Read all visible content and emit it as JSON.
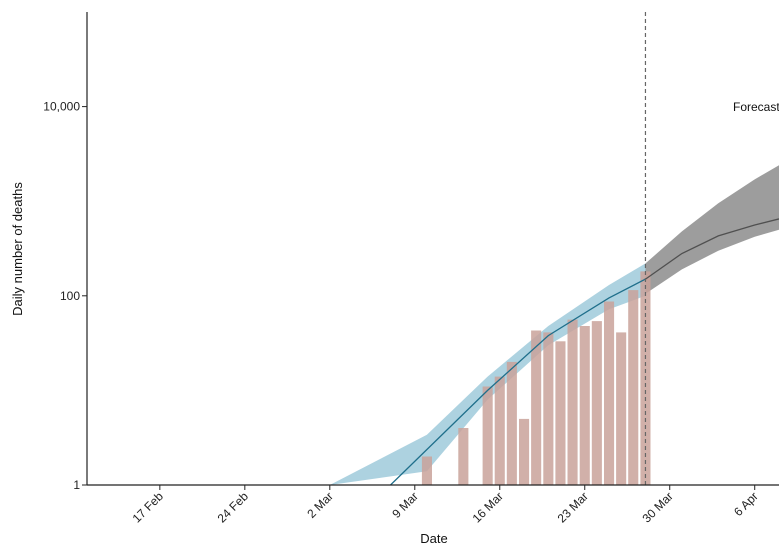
{
  "chart_data": {
    "type": "bar",
    "title": "",
    "xlabel": "Date",
    "ylabel": "Daily number of deaths",
    "y_scale": "log",
    "ylim": [
      1,
      100000
    ],
    "y_ticks": [
      {
        "value": 1,
        "label": "1"
      },
      {
        "value": 100,
        "label": "100"
      },
      {
        "value": 10000,
        "label": "10,000"
      }
    ],
    "xlim": [
      "2020-02-11",
      "2020-04-08"
    ],
    "x_ticks": [
      {
        "date": "2020-02-17",
        "label": "17 Feb"
      },
      {
        "date": "2020-02-24",
        "label": "24 Feb"
      },
      {
        "date": "2020-03-02",
        "label": "2 Mar"
      },
      {
        "date": "2020-03-09",
        "label": "9 Mar"
      },
      {
        "date": "2020-03-16",
        "label": "16 Mar"
      },
      {
        "date": "2020-03-23",
        "label": "23 Mar"
      },
      {
        "date": "2020-03-30",
        "label": "30 Mar"
      },
      {
        "date": "2020-04-06",
        "label": "6 Apr"
      }
    ],
    "forecast_start": "2020-03-28",
    "forecast_label": "Forecast",
    "grid": false,
    "colors": {
      "bars": "#c9a29a",
      "fit_band": "#9fcadb",
      "fit_line": "#1f6f8b",
      "forecast_band": "#8c8c8c",
      "forecast_line": "#505050",
      "axis": "#222222",
      "dashed_line": "#666666"
    },
    "series": [
      {
        "kind": "bars",
        "points": [
          {
            "date": "2020-03-10",
            "value": 2
          },
          {
            "date": "2020-03-13",
            "value": 4
          },
          {
            "date": "2020-03-15",
            "value": 11
          },
          {
            "date": "2020-03-16",
            "value": 14
          },
          {
            "date": "2020-03-17",
            "value": 20
          },
          {
            "date": "2020-03-18",
            "value": 5
          },
          {
            "date": "2020-03-19",
            "value": 43
          },
          {
            "date": "2020-03-20",
            "value": 41
          },
          {
            "date": "2020-03-21",
            "value": 33
          },
          {
            "date": "2020-03-22",
            "value": 56
          },
          {
            "date": "2020-03-23",
            "value": 48
          },
          {
            "date": "2020-03-24",
            "value": 54
          },
          {
            "date": "2020-03-25",
            "value": 87
          },
          {
            "date": "2020-03-26",
            "value": 41
          },
          {
            "date": "2020-03-27",
            "value": 115
          },
          {
            "date": "2020-03-28",
            "value": 181
          }
        ]
      },
      {
        "kind": "fit_band",
        "points": [
          {
            "date": "2020-03-02",
            "low": 1,
            "high": 1
          },
          {
            "date": "2020-03-10",
            "low": 1.4,
            "high": 3.4
          },
          {
            "date": "2020-03-15",
            "low": 8,
            "high": 14
          },
          {
            "date": "2020-03-20",
            "low": 30,
            "high": 48
          },
          {
            "date": "2020-03-25",
            "low": 72,
            "high": 130
          },
          {
            "date": "2020-03-28",
            "low": 100,
            "high": 220
          }
        ]
      },
      {
        "kind": "fit_line",
        "points": [
          {
            "date": "2020-03-07",
            "value": 1
          },
          {
            "date": "2020-03-15",
            "value": 10
          },
          {
            "date": "2020-03-20",
            "value": 38
          },
          {
            "date": "2020-03-25",
            "value": 95
          },
          {
            "date": "2020-03-28",
            "value": 150
          }
        ]
      },
      {
        "kind": "forecast_band",
        "points": [
          {
            "date": "2020-03-28",
            "low": 105,
            "high": 220
          },
          {
            "date": "2020-03-31",
            "low": 190,
            "high": 480
          },
          {
            "date": "2020-04-03",
            "low": 300,
            "high": 950
          },
          {
            "date": "2020-04-06",
            "low": 420,
            "high": 1700
          },
          {
            "date": "2020-04-08",
            "low": 500,
            "high": 2400
          }
        ]
      },
      {
        "kind": "forecast_line",
        "points": [
          {
            "date": "2020-03-28",
            "value": 150
          },
          {
            "date": "2020-03-31",
            "value": 280
          },
          {
            "date": "2020-04-03",
            "value": 430
          },
          {
            "date": "2020-04-06",
            "value": 560
          },
          {
            "date": "2020-04-08",
            "value": 650
          }
        ]
      }
    ]
  }
}
